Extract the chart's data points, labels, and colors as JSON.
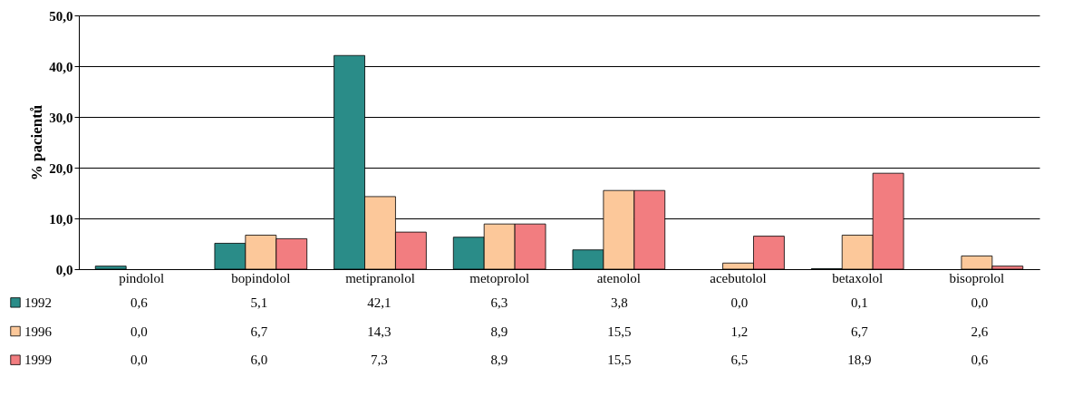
{
  "chart_data": {
    "type": "bar",
    "ylabel": "% pacientů",
    "categories": [
      "pindolol",
      "bopindolol",
      "metipranolol",
      "metoprolol",
      "atenolol",
      "acebutolol",
      "betaxolol",
      "bisoprolol"
    ],
    "series": [
      {
        "name": "1992",
        "color": "#2a8c88",
        "values": [
          0.6,
          5.1,
          42.1,
          6.3,
          3.8,
          0.0,
          0.1,
          0.0
        ],
        "value_labels": [
          "0,6",
          "5,1",
          "42,1",
          "6,3",
          "3,8",
          "0,0",
          "0,1",
          "0,0"
        ]
      },
      {
        "name": "1996",
        "color": "#fcc89a",
        "values": [
          0.0,
          6.7,
          14.3,
          8.9,
          15.5,
          1.2,
          6.7,
          2.6
        ],
        "value_labels": [
          "0,0",
          "6,7",
          "14,3",
          "8,9",
          "15,5",
          "1,2",
          "6,7",
          "2,6"
        ]
      },
      {
        "name": "1999",
        "color": "#f27d80",
        "values": [
          0.0,
          6.0,
          7.3,
          8.9,
          15.5,
          6.5,
          18.9,
          0.6
        ],
        "value_labels": [
          "0,0",
          "6,0",
          "7,3",
          "8,9",
          "15,5",
          "6,5",
          "18,9",
          "0,6"
        ]
      }
    ],
    "ylim": [
      0,
      50
    ],
    "yticks": [
      {
        "value": 0,
        "label": "0,0"
      },
      {
        "value": 10,
        "label": "10,0"
      },
      {
        "value": 20,
        "label": "20,0"
      },
      {
        "value": 30,
        "label": "30,0"
      },
      {
        "value": 40,
        "label": "40,0"
      },
      {
        "value": 50,
        "label": "50,0"
      }
    ],
    "grid": "y",
    "legend": "bottom"
  }
}
